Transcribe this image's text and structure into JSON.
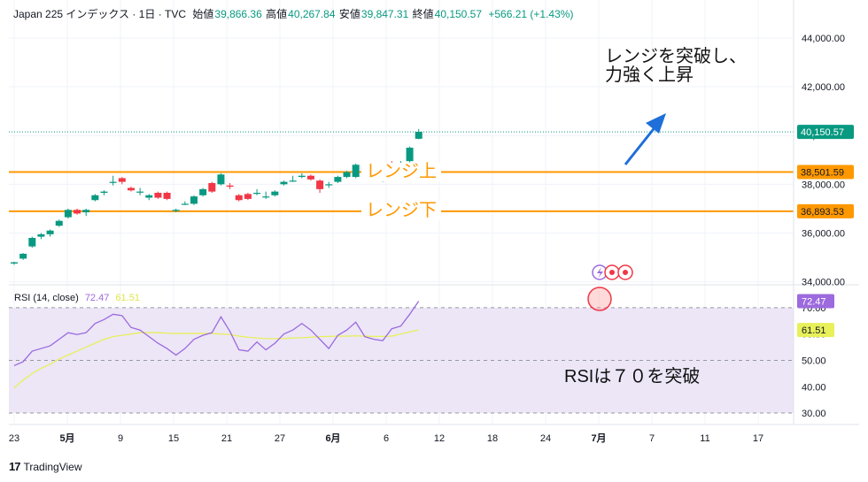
{
  "header": {
    "symbol": "Japan 225 インデックス · 1日 · TVC",
    "open_label": "始値",
    "open": "39,866.36",
    "high_label": "高値",
    "high": "40,267.84",
    "low_label": "安値",
    "low": "39,847.31",
    "close_label": "終値",
    "close": "40,150.57",
    "change": "+566.21 (+1.43%)"
  },
  "rsi_header": {
    "label": "RSI (14, close)",
    "rsi": "72.47",
    "ma": "61.51"
  },
  "annotations": {
    "breakout_line1": "レンジを突破し、",
    "breakout_line2": "力強く上昇",
    "range_upper": "レンジ上",
    "range_lower": "レンジ下",
    "rsi_note": "RSIは７０を突破"
  },
  "brand": "TradingView",
  "colors": {
    "up": "#089981",
    "down": "#f23645",
    "range_line": "#ff9800",
    "rsi_line": "#9c6ade",
    "rsi_ma": "#e8f05a",
    "rsi_band": "#ece6f7",
    "arrow": "#1e6fd9"
  },
  "chart_data": [
    {
      "type": "candlestick",
      "title": "Japan 225 インデックス · 1日 · TVC",
      "x_ticks": [
        "23",
        "5月",
        "9",
        "15",
        "21",
        "27",
        "6月",
        "6",
        "12",
        "18",
        "24",
        "7月",
        "7",
        "11",
        "17"
      ],
      "y_ticks": [
        "34,000.00",
        "36,000.00",
        "38,000.00",
        "40,000.00",
        "42,000.00",
        "44,000.00"
      ],
      "y_tick_values": [
        34000,
        36000,
        38000,
        40000,
        42000,
        44000
      ],
      "ylim": [
        33950,
        45050
      ],
      "price_labels": [
        {
          "label": "40,150.57",
          "value": 40150.57,
          "color": "#089981"
        },
        {
          "label": "38,501.59",
          "value": 38501.59,
          "color": "#ff9800"
        },
        {
          "label": "36,893.53",
          "value": 36893.53,
          "color": "#ff9800"
        }
      ],
      "range_upper": 38501.59,
      "range_lower": 36893.53,
      "last_close": 40150.57,
      "candles": [
        [
          34750,
          34800,
          34700,
          34820
        ],
        [
          34950,
          35150,
          34900,
          35180
        ],
        [
          35450,
          35800,
          35400,
          35850
        ],
        [
          35850,
          35950,
          35750,
          36000
        ],
        [
          35950,
          36100,
          35850,
          36150
        ],
        [
          36300,
          36500,
          36250,
          36550
        ],
        [
          36650,
          36950,
          36600,
          37000
        ],
        [
          36950,
          36800,
          36750,
          37000
        ],
        [
          36850,
          36950,
          36700,
          37000
        ],
        [
          37350,
          37550,
          37300,
          37600
        ],
        [
          37650,
          37700,
          37550,
          37750
        ],
        [
          38100,
          38100,
          37950,
          38350
        ],
        [
          38250,
          38100,
          38000,
          38300
        ],
        [
          37850,
          37750,
          37700,
          37900
        ],
        [
          37700,
          37700,
          37550,
          37850
        ],
        [
          37450,
          37550,
          37350,
          37600
        ],
        [
          37650,
          37450,
          37400,
          37700
        ],
        [
          37650,
          37400,
          37350,
          37700
        ],
        [
          36900,
          36950,
          36850,
          37000
        ],
        [
          37200,
          37200,
          37150,
          37300
        ],
        [
          37200,
          37500,
          37150,
          37550
        ],
        [
          37550,
          37800,
          37500,
          37850
        ],
        [
          38050,
          37700,
          37650,
          38100
        ],
        [
          38000,
          38400,
          37950,
          38450
        ],
        [
          37950,
          37900,
          37800,
          38050
        ],
        [
          37550,
          37350,
          37300,
          37600
        ],
        [
          37600,
          37400,
          37350,
          37650
        ],
        [
          37650,
          37650,
          37550,
          37800
        ],
        [
          37500,
          37500,
          37400,
          37700
        ],
        [
          37550,
          37700,
          37500,
          37750
        ],
        [
          38000,
          38100,
          37950,
          38150
        ],
        [
          38150,
          38150,
          38100,
          38350
        ],
        [
          38300,
          38350,
          38250,
          38450
        ],
        [
          38350,
          38200,
          38150,
          38400
        ],
        [
          38150,
          37800,
          37650,
          38200
        ],
        [
          38000,
          38000,
          37850,
          38100
        ],
        [
          38100,
          38300,
          38050,
          38350
        ],
        [
          38300,
          38500,
          38250,
          38550
        ],
        [
          38300,
          38800,
          38250,
          38850
        ],
        [
          38800,
          38550,
          38500,
          38850
        ],
        [
          38500,
          38500,
          38400,
          38600
        ],
        [
          38300,
          38300,
          38100,
          38450
        ],
        [
          38800,
          38750,
          38700,
          38950
        ],
        [
          38800,
          38850,
          38700,
          38950
        ],
        [
          38950,
          39500,
          38900,
          39550
        ],
        [
          39866.36,
          40150.57,
          39847.31,
          40267.84
        ]
      ]
    },
    {
      "type": "line",
      "title": "RSI (14, close)",
      "y_ticks": [
        "30.00",
        "40.00",
        "50.00",
        "60.00",
        "70.00"
      ],
      "y_tick_values": [
        30,
        40,
        50,
        60,
        70
      ],
      "ylim": [
        27,
        76
      ],
      "band": [
        30,
        70
      ],
      "last_labels": [
        {
          "label": "72.47",
          "value": 72.47,
          "color": "#9c6ade"
        },
        {
          "label": "61.51",
          "value": 61.51,
          "color": "#e8f05a"
        }
      ],
      "series": [
        {
          "name": "RSI",
          "values": [
            48,
            49.5,
            53.5,
            54.5,
            55.5,
            58,
            60.5,
            59.8,
            60.5,
            64,
            65.5,
            67.5,
            67,
            62.5,
            61.5,
            59,
            56.5,
            54.5,
            52,
            54.5,
            58,
            59.5,
            60.5,
            66.5,
            61,
            54,
            53.5,
            57,
            54,
            56.5,
            60,
            61.5,
            64,
            61.5,
            58,
            54.5,
            59.5,
            61.5,
            64.5,
            59,
            58,
            57.5,
            62,
            63,
            67.5,
            72.47
          ]
        },
        {
          "name": "MA",
          "values": [
            39.5,
            42.5,
            45,
            47,
            48.5,
            50.5,
            52,
            53.5,
            55,
            56.5,
            58,
            59,
            59.5,
            60,
            60.5,
            60.5,
            60.5,
            60.3,
            60.2,
            60.2,
            60.2,
            60.2,
            60.2,
            60,
            59.8,
            59.2,
            58.8,
            58.5,
            58.3,
            58.2,
            58.3,
            58.5,
            58.6,
            58.8,
            59,
            59.1,
            59.2,
            59.2,
            59.3,
            59.2,
            59.1,
            59.1,
            59.2,
            60,
            60.8,
            61.51
          ]
        }
      ]
    }
  ]
}
